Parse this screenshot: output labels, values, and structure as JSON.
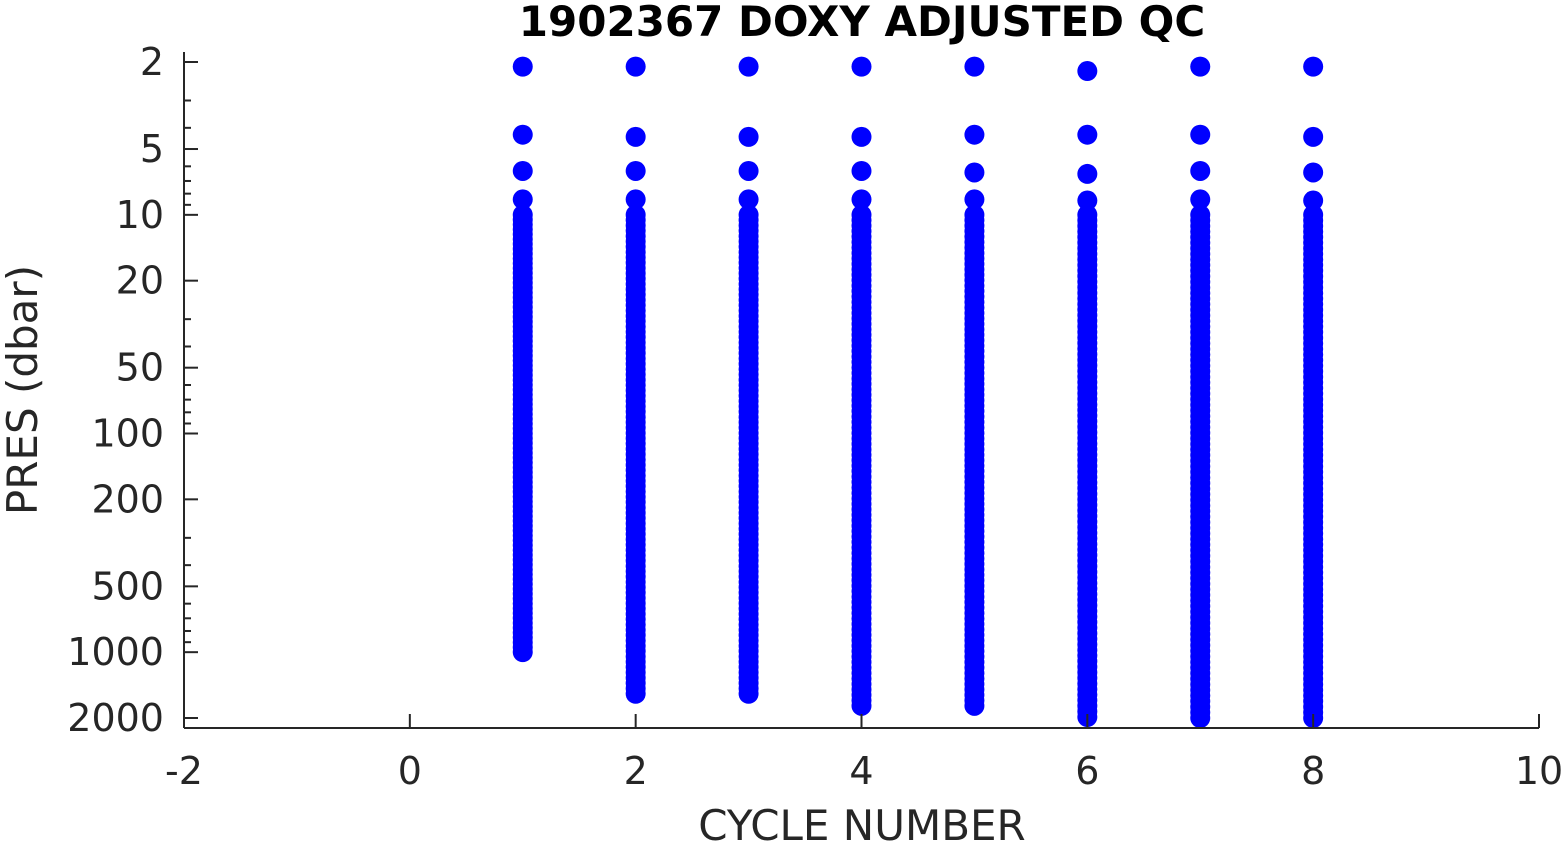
{
  "chart_data": {
    "type": "scatter",
    "title": "1902367  DOXY ADJUSTED QC",
    "xlabel": "CYCLE NUMBER",
    "ylabel": "PRES (dbar)",
    "xlim": [
      -2,
      10
    ],
    "ylim": [
      2,
      2000
    ],
    "y_scale": "log",
    "y_reversed": true,
    "x_ticks": [
      "-2",
      "0",
      "2",
      "4",
      "6",
      "8",
      "10"
    ],
    "y_ticks": [
      "2",
      "5",
      "10",
      "20",
      "50",
      "100",
      "200",
      "500",
      "1000",
      "2000"
    ],
    "grid": false,
    "marker_color": "#0000ff",
    "series": [
      {
        "values": [
          {
            "x": 1,
            "pres_top": 2.1,
            "pres_shallow": [
              4.3,
              6.3,
              8.5
            ],
            "pres_bottom": 1000
          },
          {
            "x": 2,
            "pres_top": 2.1,
            "pres_shallow": [
              4.4,
              6.3,
              8.5
            ],
            "pres_bottom": 1550
          },
          {
            "x": 3,
            "pres_top": 2.1,
            "pres_shallow": [
              4.4,
              6.3,
              8.5
            ],
            "pres_bottom": 1550
          },
          {
            "x": 4,
            "pres_top": 2.1,
            "pres_shallow": [
              4.4,
              6.3,
              8.5
            ],
            "pres_bottom": 1760
          },
          {
            "x": 5,
            "pres_top": 2.1,
            "pres_shallow": [
              4.3,
              6.4,
              8.5
            ],
            "pres_bottom": 1760
          },
          {
            "x": 6,
            "pres_top": 2.2,
            "pres_shallow": [
              4.3,
              6.5,
              8.6
            ],
            "pres_bottom": 1980
          },
          {
            "x": 7,
            "pres_top": 2.1,
            "pres_shallow": [
              4.3,
              6.3,
              8.5
            ],
            "pres_bottom": 2000
          },
          {
            "x": 8,
            "pres_top": 2.1,
            "pres_shallow": [
              4.4,
              6.4,
              8.6
            ],
            "pres_bottom": 2000
          }
        ]
      }
    ]
  }
}
